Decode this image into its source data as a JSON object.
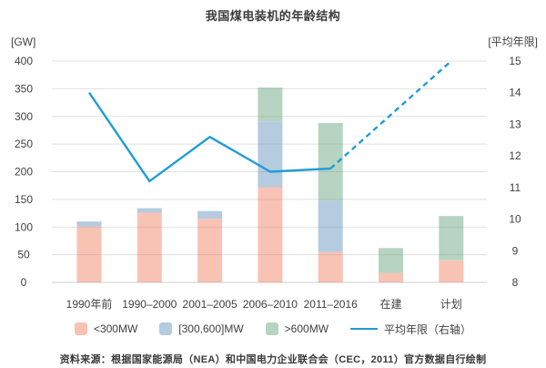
{
  "chart_data": {
    "type": "bar",
    "stacked": true,
    "title": "我国煤电装机的年龄结构",
    "categories": [
      "1990年前",
      "1990–2000",
      "2001–2005",
      "2006–2010",
      "2011–2016",
      "在建",
      "计划"
    ],
    "series": [
      {
        "name": "<300MW",
        "color": "#f9c3b4",
        "values": [
          101,
          126,
          115,
          172,
          55,
          17,
          40
        ]
      },
      {
        "name": "[300,600]MW",
        "color": "#b4cbe0",
        "values": [
          9,
          8,
          14,
          119,
          93,
          0,
          0
        ]
      },
      {
        "name": ">600MW",
        "color": "#b6d4c1",
        "values": [
          0,
          0,
          0,
          61,
          140,
          45,
          80
        ]
      }
    ],
    "line_series": {
      "name": "平均年限（右轴）",
      "color": "#1f9cd6",
      "axis": "right",
      "solid_values": [
        14.0,
        11.2,
        12.6,
        11.5,
        11.6,
        null,
        null
      ],
      "dashed_values": [
        null,
        null,
        null,
        null,
        11.6,
        13.3,
        15.0
      ]
    },
    "left_axis": {
      "unit": "[GW]",
      "min": 0,
      "max": 400,
      "step": 50
    },
    "right_axis": {
      "unit": "[平均年限]",
      "min": 8,
      "max": 15,
      "step": 1
    },
    "grid": true,
    "legend_position": "bottom"
  },
  "colors": {
    "gridline": "#888888",
    "zero_line": "#777777",
    "text": "#3f3f3f"
  },
  "footer": {
    "text": "资料来源：根据国家能源局（NEA）和中国电力企业联合会（CEC，2011）官方数据自行绘制"
  }
}
